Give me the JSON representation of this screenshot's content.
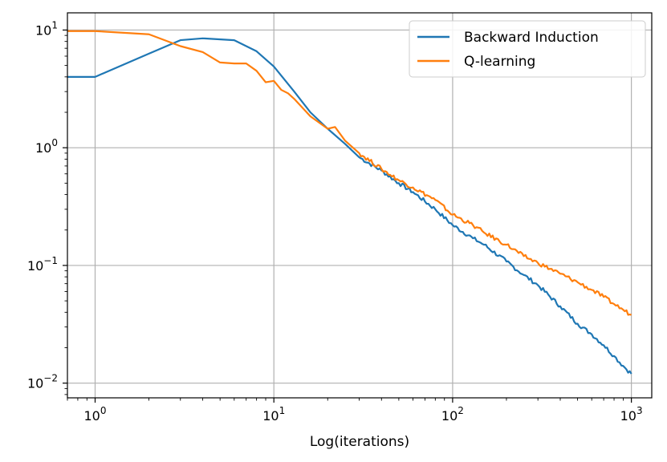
{
  "chart_data": {
    "type": "line",
    "title": "",
    "xlabel": "Log(iterations)",
    "ylabel": "",
    "xscale": "log",
    "yscale": "log",
    "xlim": [
      0.7,
      1300
    ],
    "ylim": [
      0.0075,
      14
    ],
    "grid": true,
    "legend_position": "top-right",
    "x_ticks": [
      {
        "value": 1,
        "base": "10",
        "exp": "0"
      },
      {
        "value": 10,
        "base": "10",
        "exp": "1"
      },
      {
        "value": 100,
        "base": "10",
        "exp": "2"
      },
      {
        "value": 1000,
        "base": "10",
        "exp": "3"
      }
    ],
    "y_ticks": [
      {
        "value": 0.01,
        "base": "10",
        "exp": "−2"
      },
      {
        "value": 0.1,
        "base": "10",
        "exp": "−1"
      },
      {
        "value": 1,
        "base": "10",
        "exp": "0"
      },
      {
        "value": 10,
        "base": "10",
        "exp": "1"
      }
    ],
    "series": [
      {
        "name": "Backward Induction",
        "color": "#1f77b4",
        "points": [
          [
            0.7,
            4.0
          ],
          [
            1,
            4.0
          ],
          [
            2,
            6.3
          ],
          [
            3,
            8.2
          ],
          [
            4,
            8.5
          ],
          [
            6,
            8.2
          ],
          [
            8,
            6.6
          ],
          [
            10,
            4.9
          ],
          [
            13,
            3.0
          ],
          [
            16,
            2.0
          ],
          [
            20,
            1.45
          ],
          [
            25,
            1.08
          ],
          [
            30,
            0.83
          ],
          [
            40,
            0.64
          ],
          [
            50,
            0.5
          ],
          [
            60,
            0.42
          ],
          [
            80,
            0.3
          ],
          [
            100,
            0.22
          ],
          [
            130,
            0.17
          ],
          [
            150,
            0.15
          ],
          [
            200,
            0.108
          ],
          [
            250,
            0.083
          ],
          [
            300,
            0.068
          ],
          [
            400,
            0.045
          ],
          [
            500,
            0.032
          ],
          [
            600,
            0.026
          ],
          [
            700,
            0.021
          ],
          [
            800,
            0.017
          ],
          [
            900,
            0.014
          ],
          [
            1000,
            0.012
          ]
        ]
      },
      {
        "name": "Q-learning",
        "color": "#ff7f0e",
        "points": [
          [
            0.7,
            9.8
          ],
          [
            1,
            9.8
          ],
          [
            2,
            9.2
          ],
          [
            3,
            7.3
          ],
          [
            4,
            6.5
          ],
          [
            5,
            5.3
          ],
          [
            6,
            5.2
          ],
          [
            7,
            5.2
          ],
          [
            8,
            4.5
          ],
          [
            9,
            3.6
          ],
          [
            10,
            3.7
          ],
          [
            11,
            3.1
          ],
          [
            12,
            2.9
          ],
          [
            13,
            2.6
          ],
          [
            16,
            1.85
          ],
          [
            20,
            1.45
          ],
          [
            22,
            1.5
          ],
          [
            25,
            1.15
          ],
          [
            30,
            0.9
          ],
          [
            40,
            0.66
          ],
          [
            50,
            0.53
          ],
          [
            60,
            0.46
          ],
          [
            80,
            0.36
          ],
          [
            100,
            0.27
          ],
          [
            130,
            0.22
          ],
          [
            150,
            0.19
          ],
          [
            200,
            0.15
          ],
          [
            250,
            0.12
          ],
          [
            300,
            0.105
          ],
          [
            400,
            0.085
          ],
          [
            500,
            0.072
          ],
          [
            600,
            0.062
          ],
          [
            700,
            0.054
          ],
          [
            800,
            0.047
          ],
          [
            900,
            0.042
          ],
          [
            1000,
            0.038
          ]
        ]
      }
    ]
  }
}
